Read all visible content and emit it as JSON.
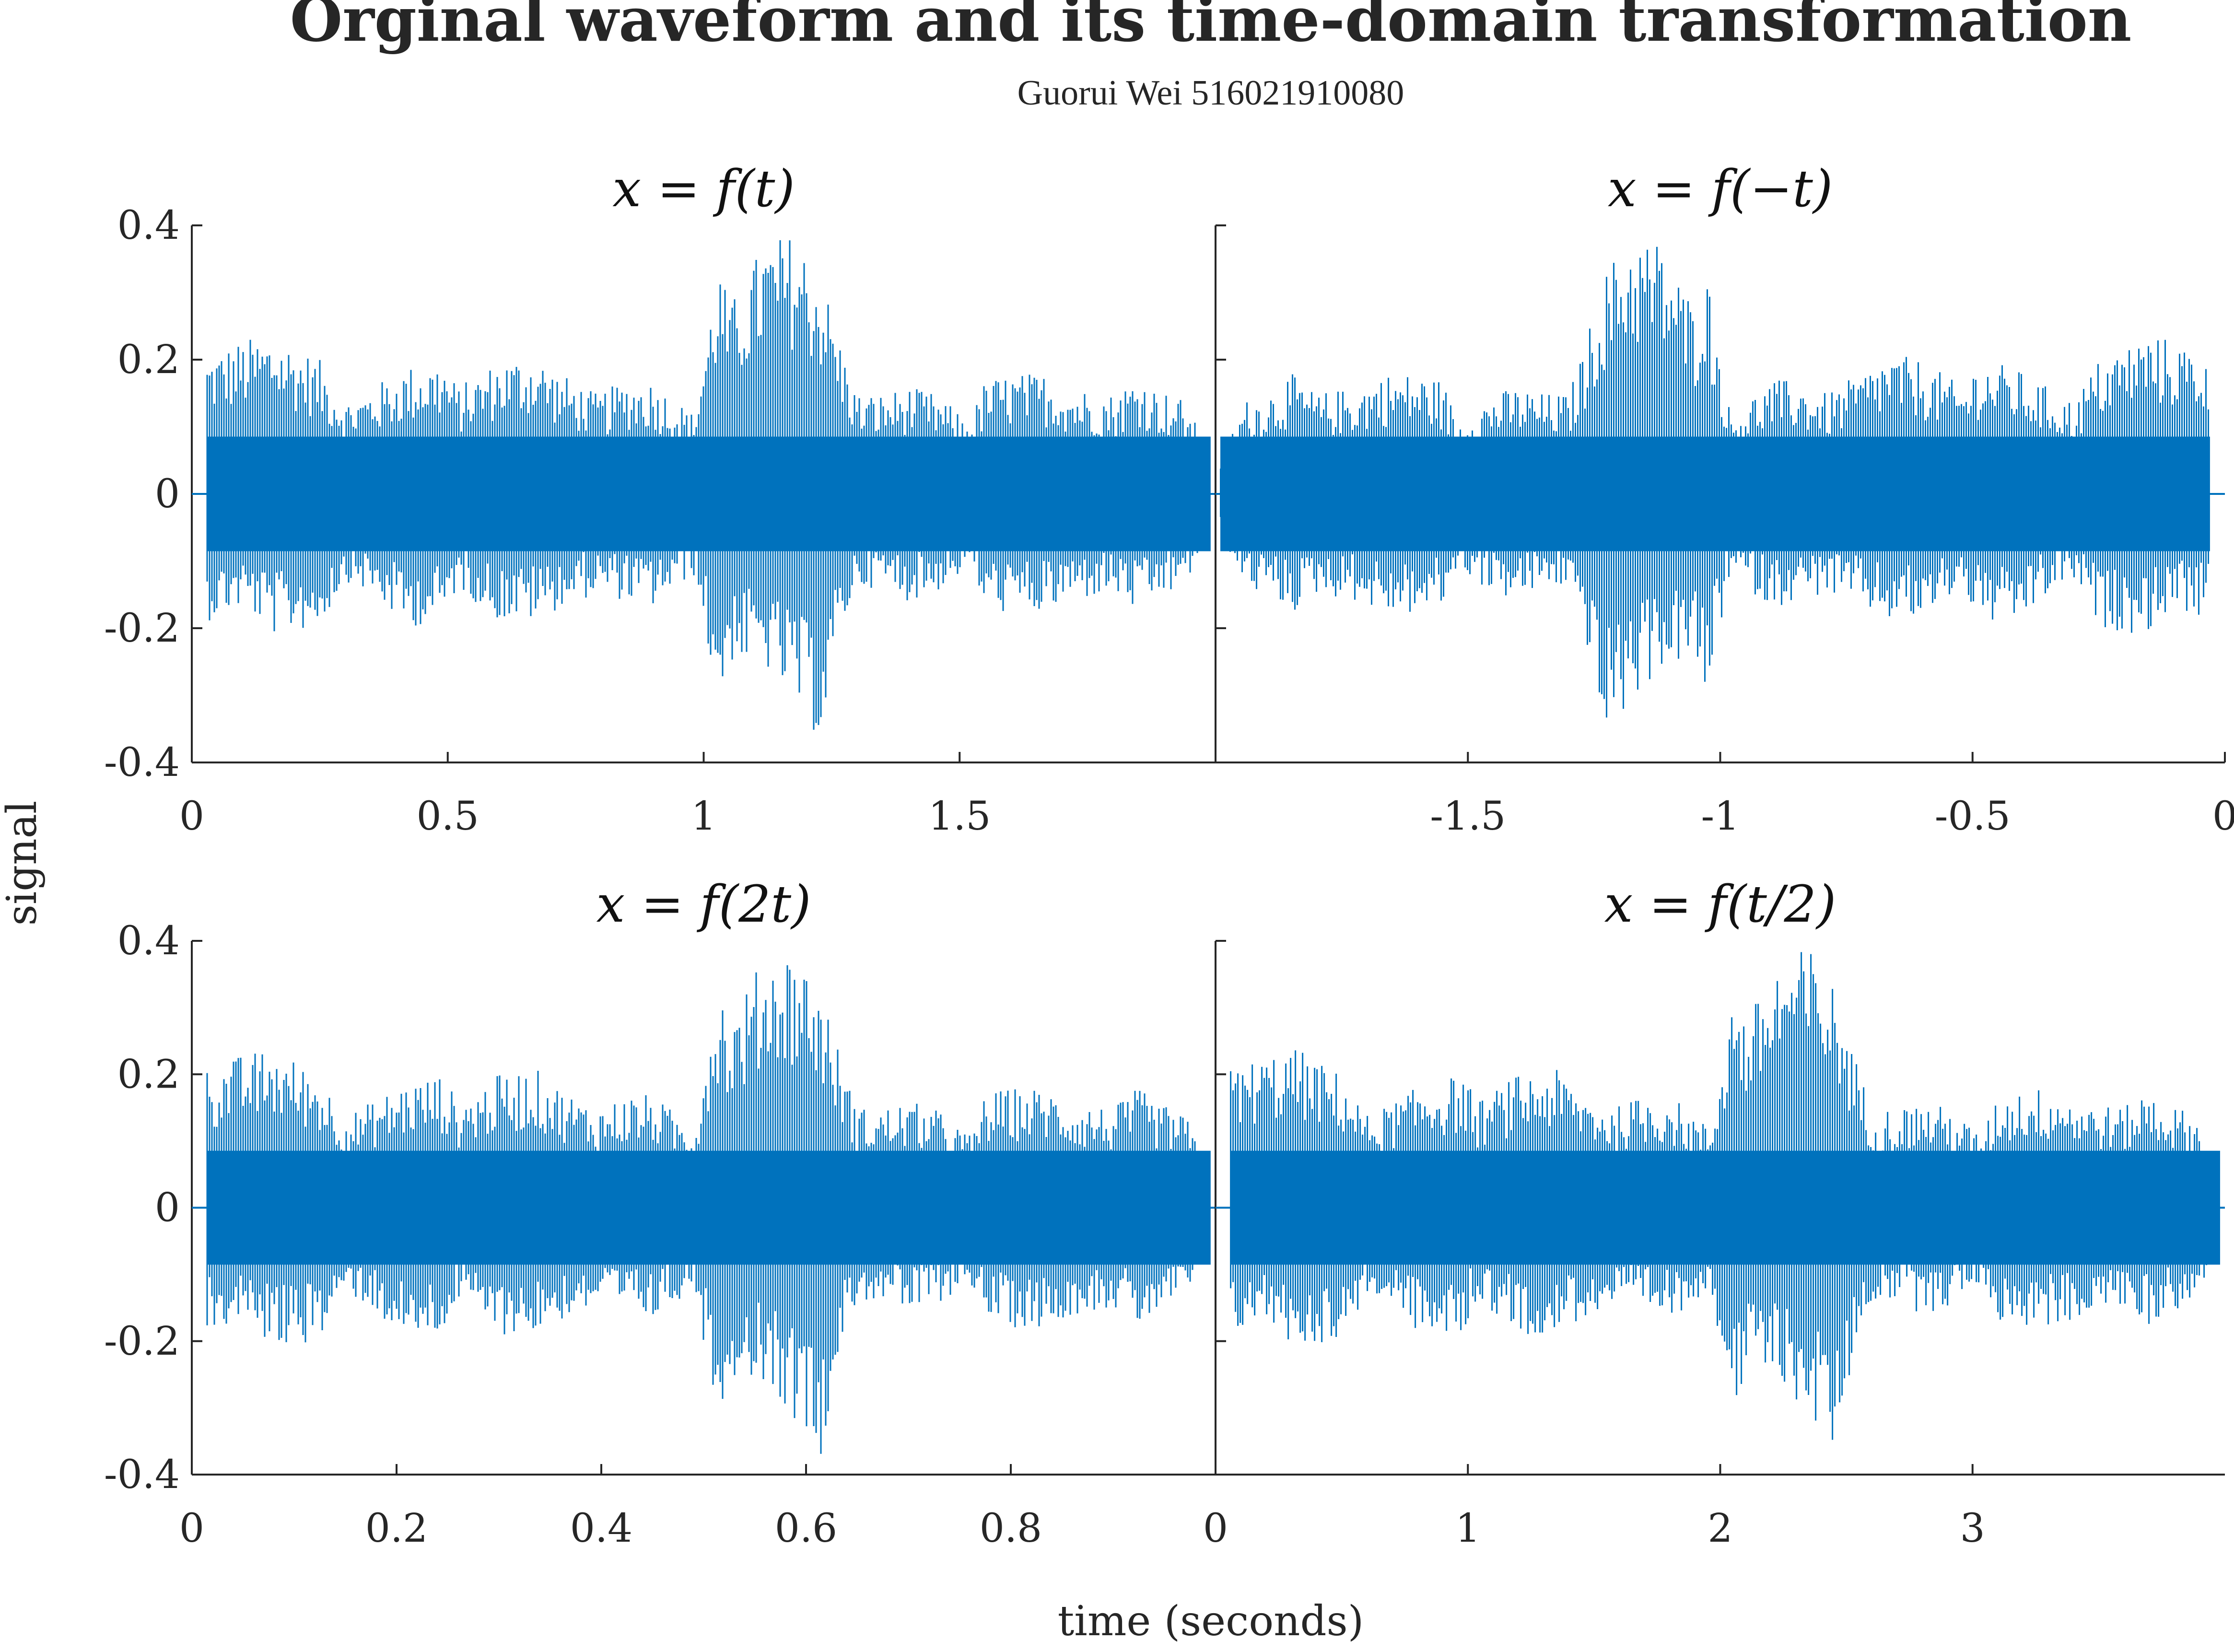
{
  "figure": {
    "title": "Orginal waveform and its time-domain transformation",
    "subtitle": "Guorui Wei 516021910080",
    "xlabel": "time (seconds)",
    "ylabel": "signal",
    "line_color": "#0072BD"
  },
  "chart_data": [
    {
      "type": "line",
      "title": "x = f(t)",
      "xlim": [
        0,
        2
      ],
      "ylim": [
        -0.4,
        0.4
      ],
      "xticks": [
        "0",
        "0.5",
        "1",
        "1.5"
      ],
      "yticks": [
        "0.4",
        "0.2",
        "0",
        "-0.2",
        "-0.4"
      ],
      "grid": false,
      "envelope": {
        "t": [
          0.03,
          0.1,
          0.16,
          0.25,
          0.3,
          0.33,
          0.42,
          0.49,
          0.52,
          0.6,
          0.67,
          0.72,
          0.79,
          0.85,
          0.9,
          0.98,
          1.03,
          1.05,
          1.12,
          1.18,
          1.23,
          1.27,
          1.3,
          1.35,
          1.4,
          1.45,
          1.52,
          1.55,
          1.6,
          1.67,
          1.72,
          1.8,
          1.85,
          1.88,
          1.94,
          1.97,
          1.99
        ],
        "upper": [
          0.21,
          0.23,
          0.24,
          0.2,
          0.14,
          0.15,
          0.19,
          0.2,
          0.16,
          0.2,
          0.21,
          0.18,
          0.15,
          0.17,
          0.17,
          0.12,
          0.35,
          0.28,
          0.38,
          0.39,
          0.33,
          0.22,
          0.15,
          0.15,
          0.16,
          0.15,
          0.11,
          0.17,
          0.18,
          0.18,
          0.16,
          0.15,
          0.18,
          0.16,
          0.14,
          0.09,
          0.05
        ],
        "lower": [
          -0.19,
          -0.17,
          -0.21,
          -0.2,
          -0.13,
          -0.14,
          -0.2,
          -0.19,
          -0.14,
          -0.19,
          -0.19,
          -0.17,
          -0.15,
          -0.16,
          -0.17,
          -0.12,
          -0.32,
          -0.25,
          -0.26,
          -0.32,
          -0.37,
          -0.2,
          -0.14,
          -0.14,
          -0.16,
          -0.15,
          -0.11,
          -0.17,
          -0.18,
          -0.18,
          -0.16,
          -0.15,
          -0.18,
          -0.16,
          -0.14,
          -0.09,
          -0.05
        ]
      }
    },
    {
      "type": "line",
      "title": "x = f(−t)",
      "xlim": [
        -2,
        0
      ],
      "ylim": [
        -0.4,
        0.4
      ],
      "xticks": [
        "-1.5",
        "-1",
        "-0.5",
        "0"
      ],
      "yticks": [],
      "grid": false,
      "envelope": {
        "t": [
          -1.99,
          -1.97,
          -1.94,
          -1.88,
          -1.85,
          -1.8,
          -1.72,
          -1.67,
          -1.6,
          -1.55,
          -1.52,
          -1.45,
          -1.4,
          -1.35,
          -1.3,
          -1.27,
          -1.23,
          -1.18,
          -1.12,
          -1.05,
          -1.03,
          -0.98,
          -0.9,
          -0.85,
          -0.79,
          -0.72,
          -0.67,
          -0.6,
          -0.52,
          -0.49,
          -0.42,
          -0.33,
          -0.3,
          -0.25,
          -0.16,
          -0.1,
          -0.03
        ],
        "upper": [
          0.05,
          0.09,
          0.14,
          0.16,
          0.18,
          0.15,
          0.16,
          0.18,
          0.18,
          0.17,
          0.11,
          0.15,
          0.16,
          0.15,
          0.15,
          0.22,
          0.33,
          0.39,
          0.38,
          0.28,
          0.35,
          0.12,
          0.17,
          0.17,
          0.15,
          0.18,
          0.21,
          0.2,
          0.16,
          0.2,
          0.19,
          0.15,
          0.14,
          0.2,
          0.24,
          0.23,
          0.21
        ],
        "lower": [
          -0.05,
          -0.09,
          -0.14,
          -0.16,
          -0.18,
          -0.15,
          -0.16,
          -0.18,
          -0.18,
          -0.17,
          -0.11,
          -0.15,
          -0.16,
          -0.14,
          -0.14,
          -0.2,
          -0.37,
          -0.32,
          -0.26,
          -0.25,
          -0.32,
          -0.12,
          -0.17,
          -0.16,
          -0.15,
          -0.17,
          -0.19,
          -0.19,
          -0.14,
          -0.19,
          -0.2,
          -0.14,
          -0.13,
          -0.2,
          -0.21,
          -0.17,
          -0.19
        ]
      }
    },
    {
      "type": "line",
      "title": "x = f(2t)",
      "xlim": [
        0,
        1
      ],
      "ylim": [
        -0.4,
        0.4
      ],
      "xticks": [
        "0",
        "0.2",
        "0.4",
        "0.6",
        "0.8"
      ],
      "yticks": [
        "0.4",
        "0.2",
        "0",
        "-0.2",
        "-0.4"
      ],
      "grid": false,
      "envelope": {
        "t": [
          0.015,
          0.05,
          0.08,
          0.125,
          0.15,
          0.165,
          0.21,
          0.245,
          0.26,
          0.3,
          0.335,
          0.36,
          0.395,
          0.425,
          0.45,
          0.49,
          0.515,
          0.525,
          0.56,
          0.59,
          0.615,
          0.635,
          0.65,
          0.675,
          0.7,
          0.725,
          0.76,
          0.775,
          0.8,
          0.835,
          0.86,
          0.9,
          0.925,
          0.94,
          0.97,
          0.985,
          0.995
        ],
        "upper": [
          0.21,
          0.23,
          0.24,
          0.2,
          0.14,
          0.15,
          0.19,
          0.2,
          0.16,
          0.2,
          0.21,
          0.18,
          0.15,
          0.17,
          0.17,
          0.12,
          0.35,
          0.28,
          0.38,
          0.39,
          0.33,
          0.22,
          0.15,
          0.15,
          0.16,
          0.15,
          0.11,
          0.17,
          0.18,
          0.18,
          0.16,
          0.15,
          0.18,
          0.16,
          0.14,
          0.09,
          0.05
        ],
        "lower": [
          -0.19,
          -0.17,
          -0.21,
          -0.2,
          -0.13,
          -0.14,
          -0.2,
          -0.19,
          -0.14,
          -0.19,
          -0.19,
          -0.17,
          -0.15,
          -0.16,
          -0.17,
          -0.12,
          -0.32,
          -0.25,
          -0.26,
          -0.32,
          -0.37,
          -0.2,
          -0.14,
          -0.14,
          -0.16,
          -0.15,
          -0.11,
          -0.17,
          -0.18,
          -0.18,
          -0.16,
          -0.15,
          -0.18,
          -0.16,
          -0.14,
          -0.09,
          -0.05
        ]
      }
    },
    {
      "type": "line",
      "title": "x = f(t/2)",
      "xlim": [
        0,
        4
      ],
      "ylim": [
        -0.4,
        0.4
      ],
      "xticks": [
        "0",
        "1",
        "2",
        "3"
      ],
      "yticks": [],
      "grid": false,
      "envelope": {
        "t": [
          0.06,
          0.2,
          0.32,
          0.5,
          0.6,
          0.66,
          0.84,
          0.98,
          1.04,
          1.2,
          1.34,
          1.44,
          1.58,
          1.7,
          1.8,
          1.96,
          2.06,
          2.1,
          2.24,
          2.36,
          2.46,
          2.54,
          2.6,
          2.7,
          2.8,
          2.9,
          3.04,
          3.1,
          3.2,
          3.34,
          3.44,
          3.6,
          3.7,
          3.76,
          3.88,
          3.94,
          3.98
        ],
        "upper": [
          0.21,
          0.23,
          0.24,
          0.2,
          0.14,
          0.15,
          0.19,
          0.2,
          0.16,
          0.2,
          0.21,
          0.18,
          0.15,
          0.17,
          0.17,
          0.12,
          0.35,
          0.28,
          0.38,
          0.39,
          0.33,
          0.22,
          0.15,
          0.15,
          0.16,
          0.15,
          0.11,
          0.17,
          0.18,
          0.18,
          0.16,
          0.15,
          0.18,
          0.16,
          0.14,
          0.09,
          0.05
        ],
        "lower": [
          -0.19,
          -0.17,
          -0.21,
          -0.2,
          -0.13,
          -0.14,
          -0.2,
          -0.19,
          -0.14,
          -0.19,
          -0.19,
          -0.17,
          -0.15,
          -0.16,
          -0.17,
          -0.12,
          -0.32,
          -0.25,
          -0.26,
          -0.32,
          -0.37,
          -0.2,
          -0.14,
          -0.14,
          -0.16,
          -0.15,
          -0.11,
          -0.17,
          -0.18,
          -0.18,
          -0.16,
          -0.15,
          -0.18,
          -0.16,
          -0.14,
          -0.09,
          -0.05
        ]
      }
    }
  ]
}
